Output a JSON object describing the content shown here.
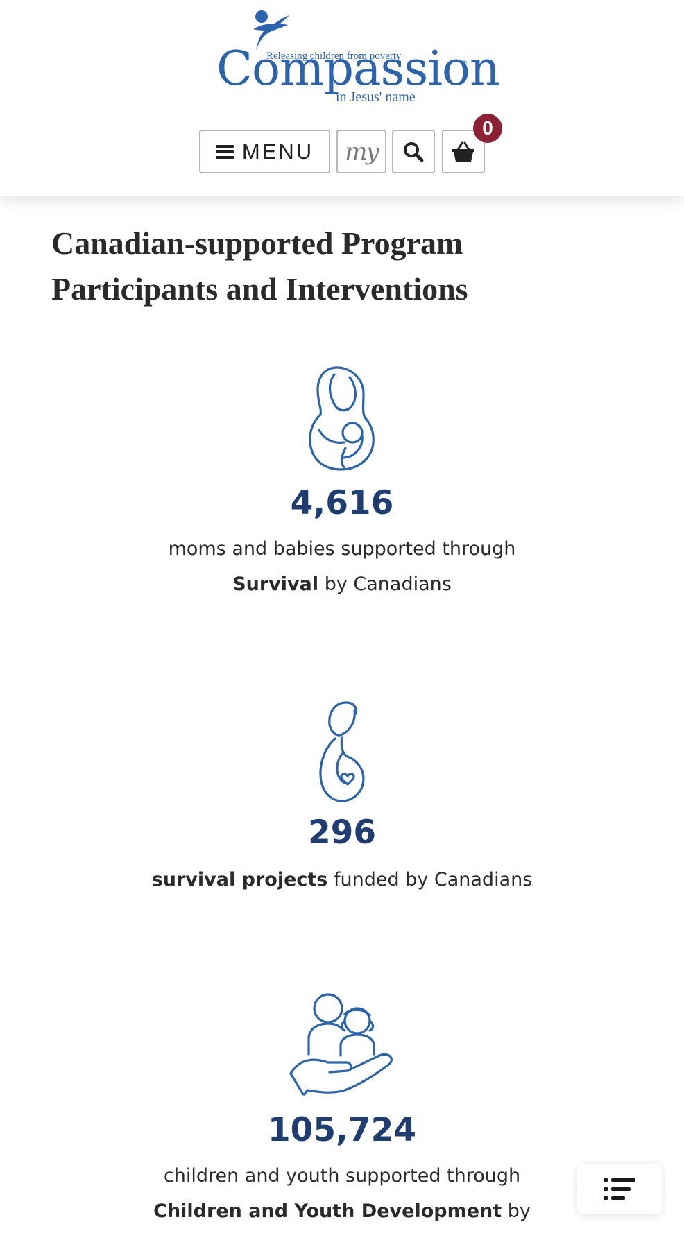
{
  "header": {
    "logo": {
      "wordmark": "Compassion",
      "tagline": "Releasing children from poverty",
      "subtag": "in Jesus' name",
      "registered_mark": "®"
    },
    "menu_label": "MENU",
    "my_label": "my",
    "cart_count": "0"
  },
  "section": {
    "title_line1": "Canadian-supported Program",
    "title_line2": "Participants and Interventions"
  },
  "stats": [
    {
      "icon": "mother-baby-icon",
      "number": "4,616",
      "desc_line1": "moms and babies supported through",
      "desc_bold": "Survival",
      "desc_rest": " by Canadians"
    },
    {
      "icon": "pregnant-woman-icon",
      "number": "296",
      "desc_bold": "survival projects",
      "desc_rest": " funded by Canadians"
    },
    {
      "icon": "hand-children-icon",
      "number": "105,724",
      "desc_line1": "children and youth supported through",
      "desc_bold": "Children and Youth Development",
      "desc_rest": " by"
    }
  ],
  "colors": {
    "brand_blue": "#2b63ad",
    "number_blue": "#1f3d73",
    "badge_red": "#8c2131"
  }
}
